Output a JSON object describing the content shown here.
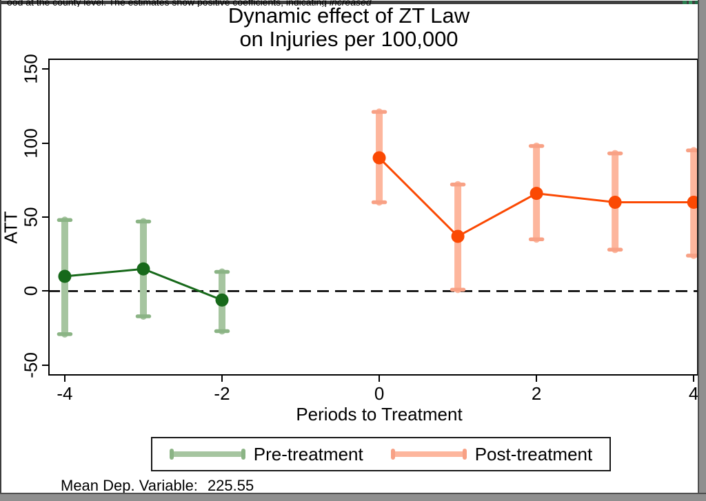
{
  "background_document": {
    "sliver_text": "ood at the county level. The estimates show positive coefficients, indicating ",
    "sliver_text_italic": "increased"
  },
  "chart_data": {
    "type": "line",
    "title_lines": [
      "Dynamic effect of ZT Law",
      "on Injuries per 100,000"
    ],
    "xlabel": "Periods to Treatment",
    "ylabel": "ATT",
    "x_ticks": [
      -4,
      -2,
      0,
      2,
      4
    ],
    "y_ticks": [
      150,
      100,
      50,
      0,
      -50
    ],
    "xlim": [
      -4.21,
      4.06
    ],
    "ylim": [
      -57,
      157
    ],
    "grid": false,
    "zero_reference_line": 0,
    "legend_position": "bottom",
    "series": [
      {
        "name": "Pre-treatment",
        "color": "#17691a",
        "ci_color": "#a6c5a0",
        "cap_color": "#8bb485",
        "points": [
          {
            "x": -4,
            "y": 10,
            "lo": -29,
            "hi": 48
          },
          {
            "x": -3,
            "y": 15,
            "lo": -17,
            "hi": 47
          },
          {
            "x": -2,
            "y": -6,
            "lo": -27,
            "hi": 13
          }
        ]
      },
      {
        "name": "Post-treatment",
        "color": "#fb4903",
        "ci_color": "#fdb69d",
        "cap_color": "#f8a185",
        "points": [
          {
            "x": 0,
            "y": 90,
            "lo": 60,
            "hi": 121
          },
          {
            "x": 1,
            "y": 37,
            "lo": 1,
            "hi": 72
          },
          {
            "x": 2,
            "y": 66,
            "lo": 35,
            "hi": 98
          },
          {
            "x": 3,
            "y": 60,
            "lo": 28,
            "hi": 93
          },
          {
            "x": 4,
            "y": 60,
            "lo": 24,
            "hi": 95
          }
        ]
      }
    ],
    "note_label": "Mean Dep. Variable:",
    "note_value": "225.55"
  }
}
